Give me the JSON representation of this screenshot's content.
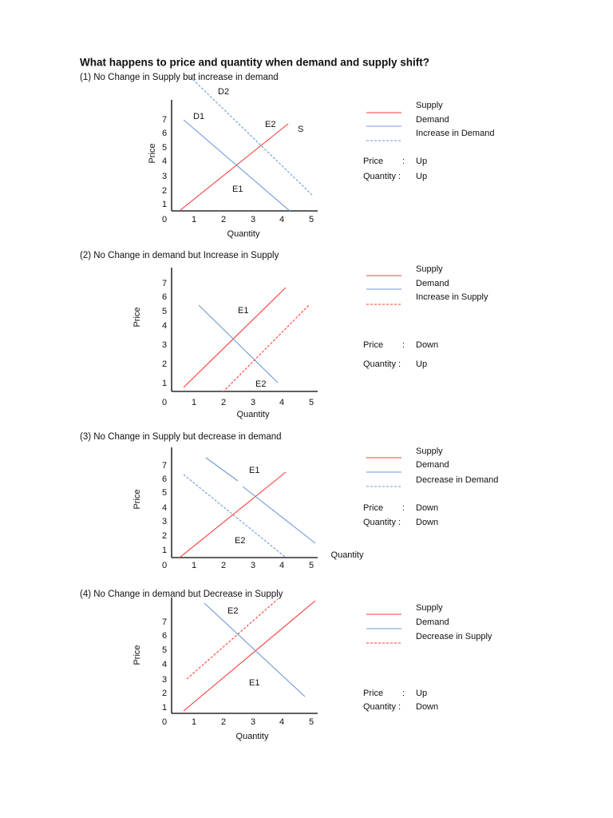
{
  "title": "What happens to price and quantity when demand and supply shift?",
  "colors": {
    "supply": "#ff3b3b",
    "demand": "#6f98d8",
    "axis": "#000000"
  },
  "sections": [
    {
      "heading": "(1) No Change in Supply but increase in demand",
      "y_ticks": [
        "0",
        "1",
        "2",
        "3",
        "4",
        "5",
        "6",
        "7"
      ],
      "x_ticks": [
        "1",
        "2",
        "3",
        "4",
        "5"
      ],
      "y_label": "Price",
      "x_label": "Quantity",
      "curve_labels": [
        "D2",
        "D1",
        "E2",
        "S",
        "E1"
      ],
      "legend": [
        "Supply",
        "Demand",
        "Increase in Demand"
      ],
      "legend_styles": [
        "supply-solid",
        "demand-solid",
        "demand-dashed"
      ],
      "price_label": "Price",
      "quantity_label": "Quantity :",
      "colon": ":",
      "price_result": "Up",
      "quantity_result": "Up"
    },
    {
      "heading": "(2) No Change in demand but Increase in Supply",
      "y_ticks": [
        "0",
        "1",
        "2",
        "3",
        "4",
        "5",
        "6",
        "7"
      ],
      "x_ticks": [
        "1",
        "2",
        "3",
        "4",
        "5"
      ],
      "y_label": "Price",
      "x_label": "Quantity",
      "curve_labels": [
        "E1",
        "E2"
      ],
      "legend": [
        "Supply",
        "Demand",
        "Increase in Supply"
      ],
      "legend_styles": [
        "supply-solid",
        "demand-solid",
        "supply-dashed"
      ],
      "price_label": "Price",
      "quantity_label": "Quantity :",
      "colon": ":",
      "price_result": "Down",
      "quantity_result": "Up"
    },
    {
      "heading": "(3) No Change in Supply but decrease in demand",
      "y_ticks": [
        "0",
        "1",
        "2",
        "3",
        "4",
        "5",
        "6",
        "7"
      ],
      "x_ticks": [
        "1",
        "2",
        "3",
        "4",
        "5"
      ],
      "y_label": "Price",
      "x_label": "Quantity",
      "curve_labels": [
        "E1",
        "E2"
      ],
      "legend": [
        "Supply",
        "Demand",
        "Decrease in Demand"
      ],
      "legend_styles": [
        "supply-solid",
        "demand-solid",
        "demand-dashed"
      ],
      "price_label": "Price",
      "quantity_label": "Quantity :",
      "colon": ":",
      "price_result": "Down",
      "quantity_result": "Down"
    },
    {
      "heading": "(4) No Change in demand but Decrease in Supply",
      "y_ticks": [
        "0",
        "1",
        "2",
        "3",
        "4",
        "5",
        "6",
        "7"
      ],
      "x_ticks": [
        "1",
        "2",
        "3",
        "4",
        "5"
      ],
      "y_label": "Price",
      "x_label": "Quantity",
      "curve_labels": [
        "E2",
        "E1"
      ],
      "legend": [
        "Supply",
        "Demand",
        "Decrease in Supply"
      ],
      "legend_styles": [
        "supply-solid",
        "demand-solid",
        "supply-dashed"
      ],
      "price_label": "Price",
      "quantity_label": "Quantity :",
      "colon": ":",
      "price_result": "Up",
      "quantity_result": "Down"
    }
  ]
}
